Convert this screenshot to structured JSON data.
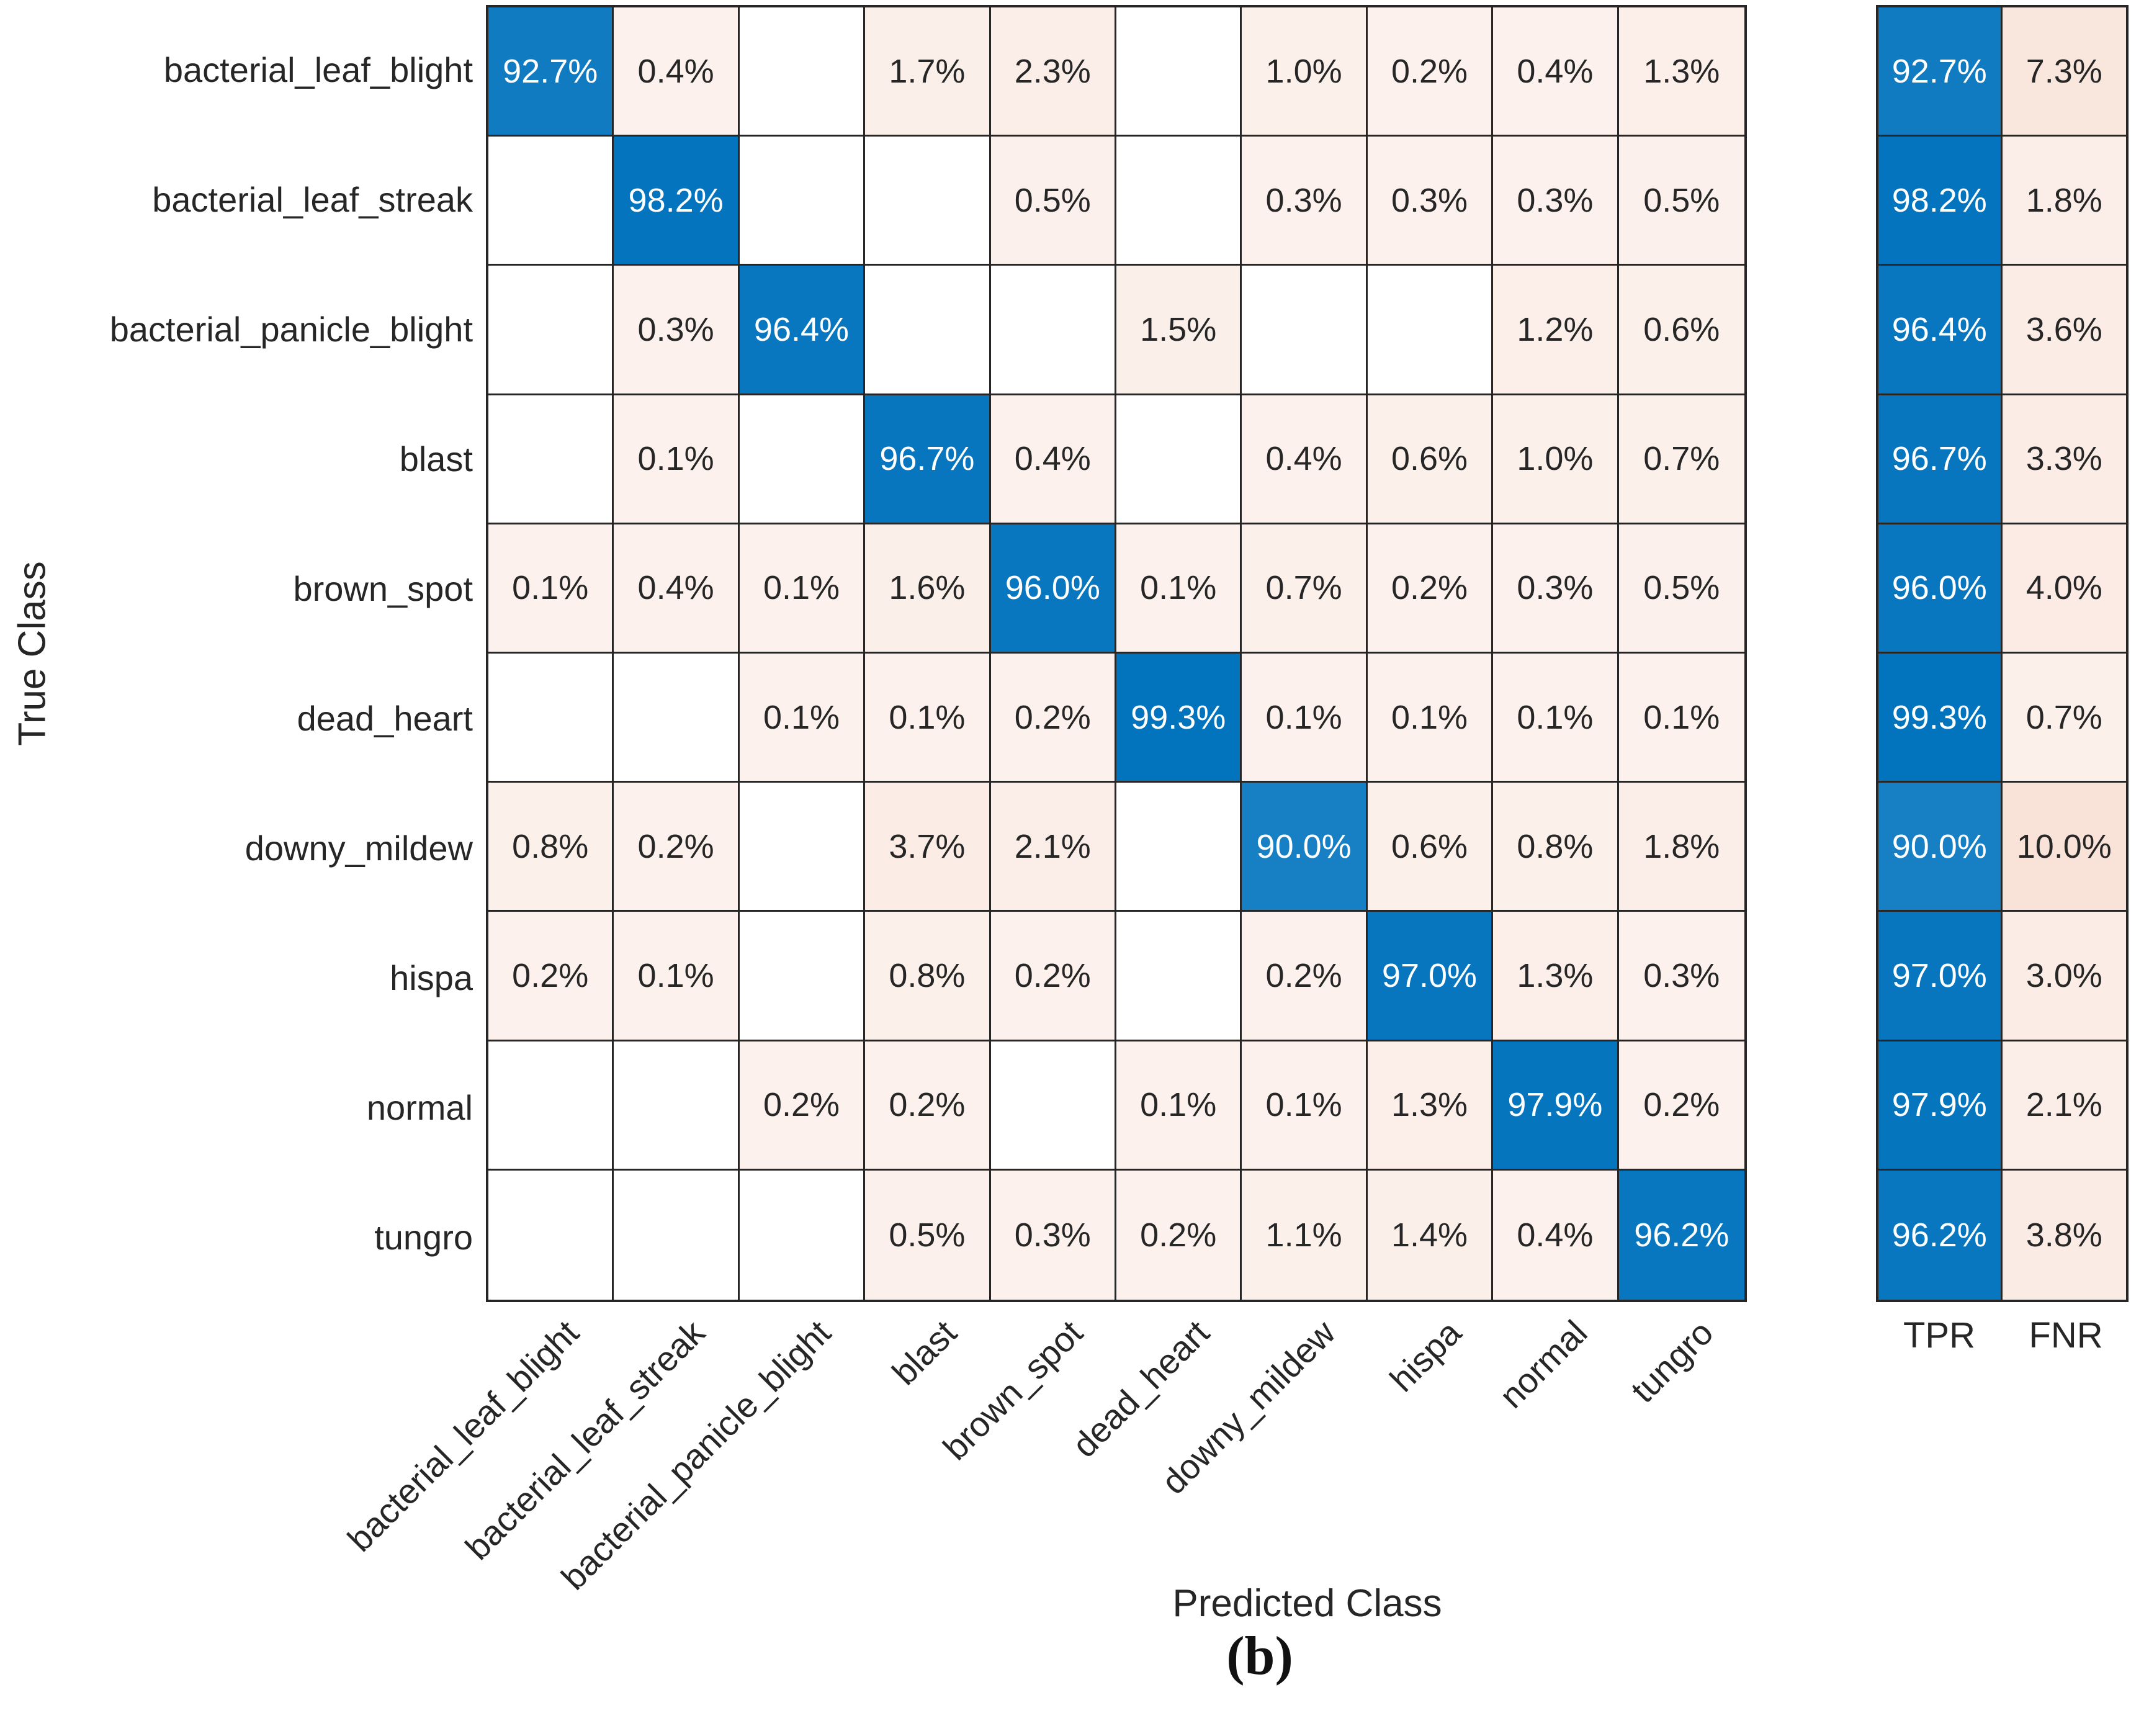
{
  "figure": {
    "caption": "(b)"
  },
  "colors": {
    "diagonal": "#0072BD",
    "off_diagonal": "#D95319",
    "grid_line": "#262626",
    "cell_text_dark": "#262626",
    "cell_text_light": "#FFFFFF",
    "background": "#FFFFFF"
  },
  "chart_data": {
    "type": "heatmap",
    "subtype": "confusion-matrix",
    "normalization": "row-percentage",
    "xlabel": "Predicted Class",
    "ylabel": "True Class",
    "summary_columns": [
      "TPR",
      "FNR"
    ],
    "value_suffix": "%",
    "classes": [
      "bacterial_leaf_blight",
      "bacterial_leaf_streak",
      "bacterial_panicle_blight",
      "blast",
      "brown_spot",
      "dead_heart",
      "downy_mildew",
      "hispa",
      "normal",
      "tungro"
    ],
    "rows": [
      {
        "label": "bacterial_leaf_blight",
        "values": [
          92.7,
          0.4,
          null,
          1.7,
          2.3,
          null,
          1.0,
          0.2,
          0.4,
          1.3
        ],
        "tpr": 92.7,
        "fnr": 7.3
      },
      {
        "label": "bacterial_leaf_streak",
        "values": [
          null,
          98.2,
          null,
          null,
          0.5,
          null,
          0.3,
          0.3,
          0.3,
          0.5
        ],
        "tpr": 98.2,
        "fnr": 1.8
      },
      {
        "label": "bacterial_panicle_blight",
        "values": [
          null,
          0.3,
          96.4,
          null,
          null,
          1.5,
          null,
          null,
          1.2,
          0.6
        ],
        "tpr": 96.4,
        "fnr": 3.6
      },
      {
        "label": "blast",
        "values": [
          null,
          0.1,
          null,
          96.7,
          0.4,
          null,
          0.4,
          0.6,
          1.0,
          0.7
        ],
        "tpr": 96.7,
        "fnr": 3.3
      },
      {
        "label": "brown_spot",
        "values": [
          0.1,
          0.4,
          0.1,
          1.6,
          96.0,
          0.1,
          0.7,
          0.2,
          0.3,
          0.5
        ],
        "tpr": 96.0,
        "fnr": 4.0
      },
      {
        "label": "dead_heart",
        "values": [
          null,
          null,
          0.1,
          0.1,
          0.2,
          99.3,
          0.1,
          0.1,
          0.1,
          0.1
        ],
        "tpr": 99.3,
        "fnr": 0.7
      },
      {
        "label": "downy_mildew",
        "values": [
          0.8,
          0.2,
          null,
          3.7,
          2.1,
          null,
          90.0,
          0.6,
          0.8,
          1.8
        ],
        "tpr": 90.0,
        "fnr": 10.0
      },
      {
        "label": "hispa",
        "values": [
          0.2,
          0.1,
          null,
          0.8,
          0.2,
          null,
          0.2,
          97.0,
          1.3,
          0.3
        ],
        "tpr": 97.0,
        "fnr": 3.0
      },
      {
        "label": "normal",
        "values": [
          null,
          null,
          0.2,
          0.2,
          null,
          0.1,
          0.1,
          1.3,
          97.9,
          0.2
        ],
        "tpr": 97.9,
        "fnr": 2.1
      },
      {
        "label": "tungro",
        "values": [
          null,
          null,
          null,
          0.5,
          0.3,
          0.2,
          1.1,
          1.4,
          0.4,
          96.2
        ],
        "tpr": 96.2,
        "fnr": 3.8
      }
    ]
  }
}
